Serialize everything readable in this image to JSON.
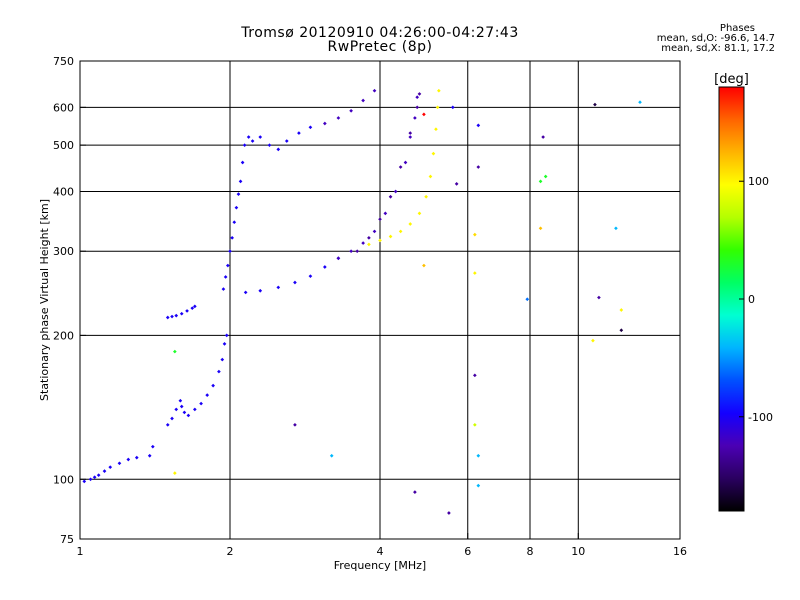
{
  "chart_data": {
    "type": "scatter",
    "title": "Tromsø 20120910 04:26:00-04:27:43",
    "subtitle": "RwPretec (8p)",
    "xlabel": "Frequency [MHz]",
    "ylabel": "Stationary phase Virtual Height [km]",
    "xscale": "log",
    "yscale": "log",
    "xlim": [
      1,
      16
    ],
    "ylim": [
      75,
      750
    ],
    "xticks": [
      "1",
      "2",
      "4",
      "6",
      "8",
      "10",
      "16"
    ],
    "xtick_values": [
      1,
      2,
      4,
      6,
      8,
      10,
      16
    ],
    "yticks": [
      "75",
      "100",
      "200",
      "300",
      "400",
      "500",
      "600",
      "750"
    ],
    "ytick_values": [
      75,
      100,
      200,
      300,
      400,
      500,
      600,
      750
    ],
    "grid": true,
    "stats_header": "Phases",
    "stats_lines": [
      "mean, sd,O: -96.6, 14.7",
      "mean, sd,X:  81.1, 17.2"
    ],
    "colorbar": {
      "label": "[deg]",
      "ticks": [
        "100",
        "0",
        "-100"
      ],
      "tick_values": [
        100,
        0,
        -100
      ],
      "range": [
        -180,
        180
      ],
      "colors": [
        "#000000",
        "#2a0060",
        "#4b00b4",
        "#1400ff",
        "#0050ff",
        "#00b4ff",
        "#00ffd2",
        "#00ff64",
        "#32ff00",
        "#b4ff00",
        "#ffff00",
        "#ffb400",
        "#ff6400",
        "#ff0000"
      ]
    },
    "series": [
      {
        "points": [
          [
            1.02,
            99,
            -100
          ],
          [
            1.05,
            100,
            -100
          ],
          [
            1.07,
            101,
            -100
          ],
          [
            1.09,
            102,
            -100
          ],
          [
            1.12,
            104,
            -100
          ],
          [
            1.15,
            106,
            -100
          ],
          [
            1.2,
            108,
            -100
          ],
          [
            1.25,
            110,
            -100
          ],
          [
            1.3,
            111,
            -100
          ],
          [
            1.38,
            112,
            -100
          ],
          [
            1.4,
            117,
            -100
          ]
        ]
      },
      {
        "points": [
          [
            1.5,
            130,
            -100
          ],
          [
            1.53,
            134,
            -100
          ],
          [
            1.56,
            140,
            -100
          ],
          [
            1.59,
            146,
            -100
          ],
          [
            1.6,
            142,
            -100
          ],
          [
            1.62,
            138,
            -100
          ],
          [
            1.65,
            136,
            -100
          ],
          [
            1.7,
            140,
            -100
          ],
          [
            1.75,
            144,
            -100
          ],
          [
            1.8,
            150,
            -100
          ],
          [
            1.85,
            157,
            -100
          ],
          [
            1.9,
            168,
            -100
          ],
          [
            1.93,
            178,
            -100
          ],
          [
            1.95,
            192,
            -100
          ],
          [
            1.97,
            200,
            -100
          ]
        ]
      },
      {
        "points": [
          [
            1.5,
            218,
            -100
          ],
          [
            1.53,
            219,
            -100
          ],
          [
            1.56,
            220,
            -100
          ],
          [
            1.6,
            222,
            -100
          ],
          [
            1.64,
            225,
            -100
          ],
          [
            1.68,
            228,
            -100
          ],
          [
            1.7,
            230,
            -100
          ]
        ]
      },
      {
        "points": [
          [
            1.94,
            250,
            -100
          ],
          [
            1.96,
            265,
            -100
          ],
          [
            1.98,
            280,
            -100
          ],
          [
            2.0,
            300,
            -100
          ],
          [
            2.02,
            320,
            -100
          ],
          [
            2.04,
            345,
            -100
          ],
          [
            2.06,
            370,
            -100
          ],
          [
            2.08,
            395,
            -100
          ],
          [
            2.1,
            420,
            -100
          ],
          [
            2.12,
            460,
            -100
          ],
          [
            2.14,
            500,
            -100
          ],
          [
            2.18,
            520,
            -100
          ],
          [
            2.22,
            510,
            -100
          ]
        ]
      },
      {
        "points": [
          [
            2.15,
            246,
            -100
          ],
          [
            2.3,
            248,
            -100
          ],
          [
            2.5,
            252,
            -100
          ],
          [
            2.7,
            258,
            -100
          ],
          [
            2.9,
            266,
            -100
          ],
          [
            3.1,
            278,
            -100
          ],
          [
            3.3,
            290,
            -100
          ],
          [
            3.5,
            300,
            -120
          ],
          [
            3.7,
            312,
            -120
          ],
          [
            3.9,
            330,
            -120
          ],
          [
            4.1,
            360,
            -120
          ],
          [
            4.3,
            400,
            -120
          ],
          [
            4.5,
            460,
            -120
          ],
          [
            4.6,
            520,
            -120
          ],
          [
            4.7,
            570,
            -120
          ],
          [
            4.75,
            630,
            -120
          ]
        ]
      },
      {
        "points": [
          [
            3.3,
            290,
            -120
          ],
          [
            3.6,
            300,
            -130
          ],
          [
            3.8,
            320,
            -130
          ],
          [
            4.0,
            350,
            -130
          ],
          [
            4.2,
            390,
            -130
          ],
          [
            4.4,
            450,
            -130
          ],
          [
            4.6,
            530,
            -130
          ],
          [
            4.75,
            600,
            -130
          ],
          [
            4.8,
            640,
            -130
          ]
        ]
      },
      {
        "points": [
          [
            3.8,
            310,
            100
          ],
          [
            4.0,
            316,
            100
          ],
          [
            4.2,
            322,
            100
          ],
          [
            4.4,
            330,
            100
          ],
          [
            4.6,
            342,
            100
          ],
          [
            4.8,
            360,
            100
          ],
          [
            4.95,
            390,
            100
          ],
          [
            5.05,
            430,
            100
          ],
          [
            5.12,
            480,
            100
          ],
          [
            5.18,
            540,
            100
          ],
          [
            5.22,
            600,
            100
          ],
          [
            5.25,
            650,
            100
          ]
        ]
      },
      {
        "points": [
          [
            2.3,
            520,
            -100
          ],
          [
            2.4,
            500,
            -100
          ],
          [
            2.5,
            490,
            -100
          ],
          [
            2.6,
            510,
            -100
          ],
          [
            2.75,
            530,
            -100
          ],
          [
            2.9,
            545,
            -100
          ],
          [
            3.1,
            555,
            -120
          ],
          [
            3.3,
            570,
            -120
          ],
          [
            3.5,
            590,
            -120
          ],
          [
            3.7,
            620,
            -120
          ],
          [
            3.9,
            650,
            -120
          ]
        ]
      },
      {
        "points": [
          [
            4.9,
            580,
            180
          ],
          [
            5.6,
            600,
            -100
          ],
          [
            6.3,
            550,
            -100
          ],
          [
            6.3,
            450,
            -130
          ],
          [
            5.7,
            415,
            -130
          ],
          [
            8.5,
            520,
            -130
          ],
          [
            8.6,
            430,
            30
          ],
          [
            8.4,
            420,
            30
          ],
          [
            8.4,
            335,
            120
          ],
          [
            6.2,
            325,
            110
          ],
          [
            11.9,
            335,
            -40
          ],
          [
            6.2,
            270,
            100
          ],
          [
            4.9,
            280,
            120
          ],
          [
            11.0,
            240,
            -130
          ],
          [
            12.2,
            226,
            100
          ],
          [
            12.2,
            205,
            -160
          ],
          [
            13.3,
            615,
            -40
          ],
          [
            10.8,
            608,
            -160
          ],
          [
            10.7,
            195,
            100
          ],
          [
            7.9,
            238,
            -60
          ],
          [
            6.2,
            165,
            -130
          ],
          [
            6.2,
            130,
            80
          ],
          [
            6.3,
            112,
            -40
          ],
          [
            6.3,
            97,
            -40
          ],
          [
            5.5,
            85,
            -130
          ],
          [
            4.7,
            94,
            -130
          ],
          [
            3.2,
            112,
            -40
          ],
          [
            1.55,
            185,
            30
          ],
          [
            1.55,
            103,
            100
          ],
          [
            2.7,
            130,
            -130
          ]
        ]
      }
    ]
  }
}
